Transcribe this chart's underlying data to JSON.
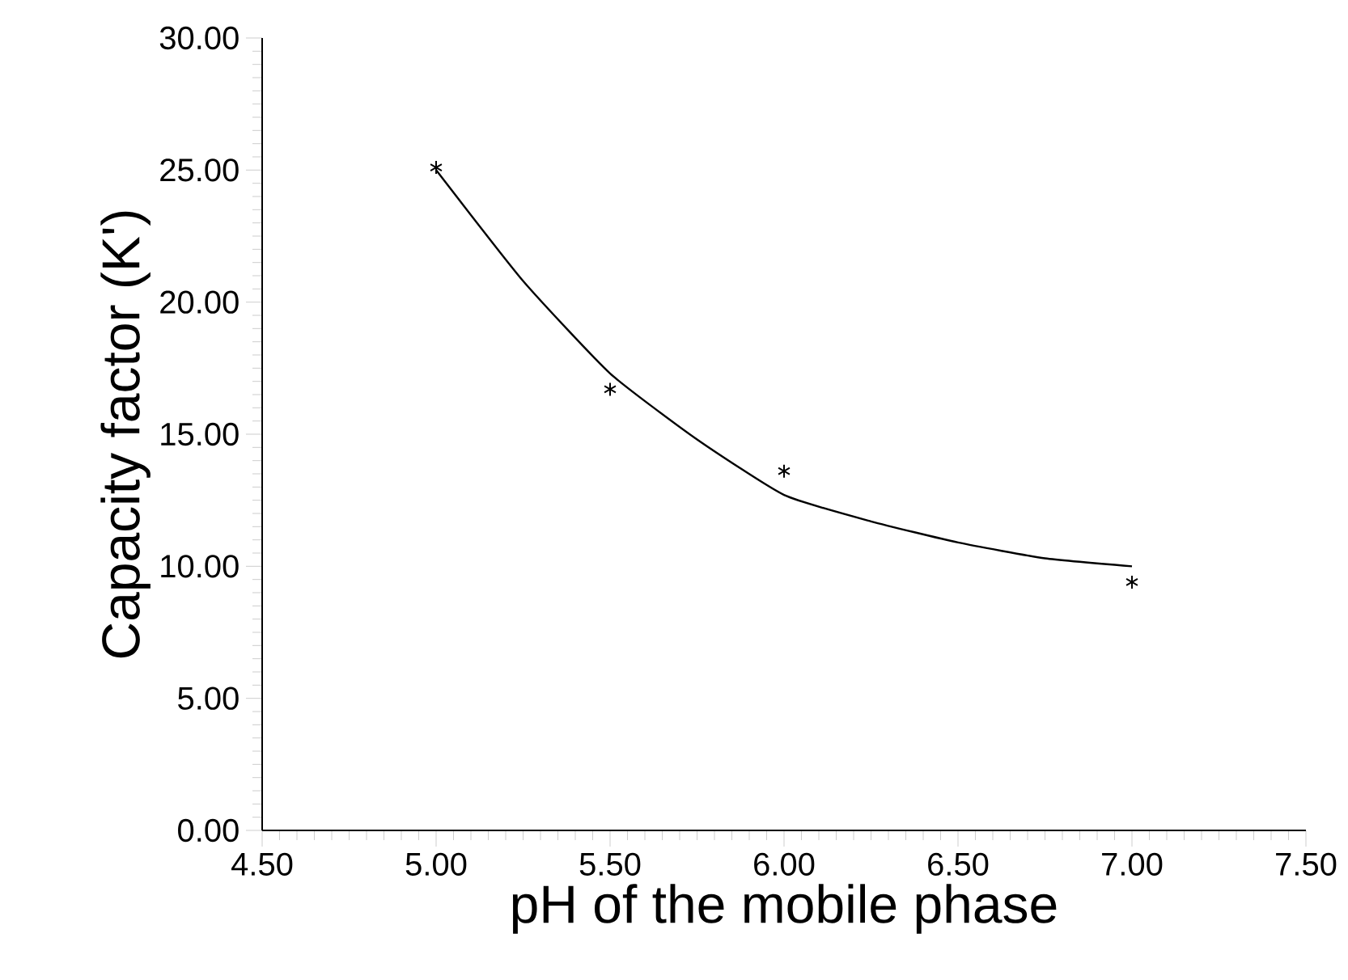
{
  "chart_data": {
    "type": "scatter",
    "xlabel": "pH of the mobile phase",
    "ylabel": "Capacity factor (K')",
    "xlim": [
      4.5,
      7.5
    ],
    "ylim": [
      0,
      30
    ],
    "xticks": [
      {
        "value": 4.5,
        "label": "4.50"
      },
      {
        "value": 5.0,
        "label": "5.00"
      },
      {
        "value": 5.5,
        "label": "5.50"
      },
      {
        "value": 6.0,
        "label": "6.00"
      },
      {
        "value": 6.5,
        "label": "6.50"
      },
      {
        "value": 7.0,
        "label": "7.00"
      },
      {
        "value": 7.5,
        "label": "7.50"
      }
    ],
    "yticks": [
      {
        "value": 0,
        "label": "0.00"
      },
      {
        "value": 5,
        "label": "5.00"
      },
      {
        "value": 10,
        "label": "10.00"
      },
      {
        "value": 15,
        "label": "15.00"
      },
      {
        "value": 20,
        "label": "20.00"
      },
      {
        "value": 25,
        "label": "25.00"
      },
      {
        "value": 30,
        "label": "30.00"
      }
    ],
    "series": [
      {
        "color": "#000000",
        "marker": "cross",
        "x": [
          5.0,
          5.5,
          6.0,
          7.0
        ],
        "values": [
          25.1,
          16.7,
          13.6,
          9.4
        ]
      },
      {
        "type": "line",
        "color": "#000000",
        "line_style": "solid",
        "x": [
          5.0,
          5.25,
          5.5,
          5.75,
          6.0,
          6.25,
          6.5,
          6.75,
          7.0
        ],
        "values": [
          25.0,
          20.8,
          17.3,
          14.8,
          12.7,
          11.7,
          10.9,
          10.3,
          10.0
        ]
      }
    ]
  }
}
